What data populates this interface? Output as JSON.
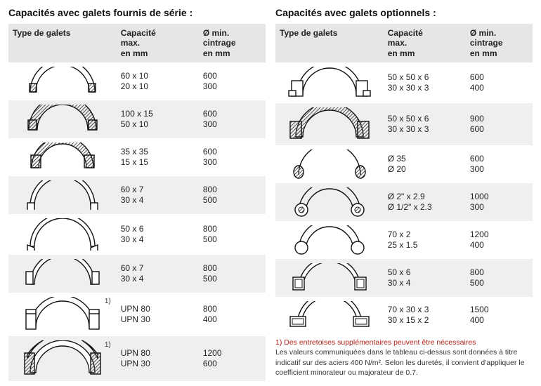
{
  "left": {
    "title": "Capacités avec galets fournis de série :",
    "headers": {
      "c1": "Type de galets",
      "c2a": "Capacité",
      "c2b": "max.",
      "c2c": "en mm",
      "c3a": "Ø min.",
      "c3b": "cintrage",
      "c3c": "en mm"
    },
    "rows": [
      {
        "shape": "flat",
        "note": "",
        "cap": [
          "60 x 10",
          "20 x 10"
        ],
        "dia": [
          "600",
          "300"
        ]
      },
      {
        "shape": "flat-wide",
        "note": "",
        "cap": [
          "100 x 15",
          "50 x 10"
        ],
        "dia": [
          "600",
          "300"
        ]
      },
      {
        "shape": "square",
        "note": "",
        "cap": [
          "35 x 35",
          "15 x 15"
        ],
        "dia": [
          "600",
          "300"
        ]
      },
      {
        "shape": "tee",
        "note": "",
        "cap": [
          "60 x 7",
          "30 x 4"
        ],
        "dia": [
          "800",
          "500"
        ]
      },
      {
        "shape": "angle-in",
        "note": "",
        "cap": [
          "50 x 6",
          "30 x 4"
        ],
        "dia": [
          "800",
          "500"
        ]
      },
      {
        "shape": "angle-out",
        "note": "",
        "cap": [
          "60 x 7",
          "30 x 4"
        ],
        "dia": [
          "800",
          "500"
        ]
      },
      {
        "shape": "u-up",
        "note": "1)",
        "cap": [
          "UPN 80",
          "UPN 30"
        ],
        "dia": [
          "800",
          "400"
        ]
      },
      {
        "shape": "u-down",
        "note": "1)",
        "cap": [
          "UPN 80",
          "UPN 30"
        ],
        "dia": [
          "1200",
          "600"
        ]
      }
    ]
  },
  "right": {
    "title": "Capacités avec galets optionnels :",
    "headers": {
      "c1": "Type de galets",
      "c2a": "Capacité",
      "c2b": "max.",
      "c2c": "en mm",
      "c3a": "Ø min.",
      "c3b": "cintrage",
      "c3c": "en mm"
    },
    "rows": [
      {
        "shape": "box-solid",
        "note": "",
        "cap": [
          "50 x 50 x 6",
          "30 x 30 x 3"
        ],
        "dia": [
          "600",
          "400"
        ]
      },
      {
        "shape": "box-hollow",
        "note": "",
        "cap": [
          "50 x 50 x 6",
          "30 x 30 x 3"
        ],
        "dia": [
          "900",
          "600"
        ]
      },
      {
        "shape": "round-solid",
        "note": "",
        "cap": [
          "Ø 35",
          "Ø 20"
        ],
        "dia": [
          "600",
          "300"
        ]
      },
      {
        "shape": "pipe-thick",
        "note": "",
        "cap": [
          "Ø 2\" x 2.9",
          "Ø 1/2\" x 2.3"
        ],
        "dia": [
          "1000",
          "300"
        ]
      },
      {
        "shape": "pipe-thin",
        "note": "",
        "cap": [
          "70 x 2",
          "25 x 1.5"
        ],
        "dia": [
          "1200",
          "400"
        ]
      },
      {
        "shape": "sq-tube",
        "note": "",
        "cap": [
          "50 x 6",
          "30 x 4"
        ],
        "dia": [
          "800",
          "500"
        ]
      },
      {
        "shape": "rect-tube",
        "note": "",
        "cap": [
          "70 x 30 x 3",
          "30 x 15 x 2"
        ],
        "dia": [
          "1500",
          "400"
        ]
      }
    ]
  },
  "footnote": {
    "red": "1) Des entretoises supplémentaires peuvent être nécessaires",
    "grey": "Les valeurs communiquées dans le tableau ci-dessus sont données à titre indicatif sur des aciers 400 N/m². Selon les duretés, il convient d'appliquer le coefficient minorateur ou majorateur de 0.7."
  },
  "style": {
    "stroke": "#111111",
    "hatch": "#555555",
    "row_even_bg": "#ffffff",
    "row_odd_bg": "#efefef",
    "header_bg": "#e6e6e6",
    "text_color": "#1a1a1a",
    "red": "#b22018"
  }
}
